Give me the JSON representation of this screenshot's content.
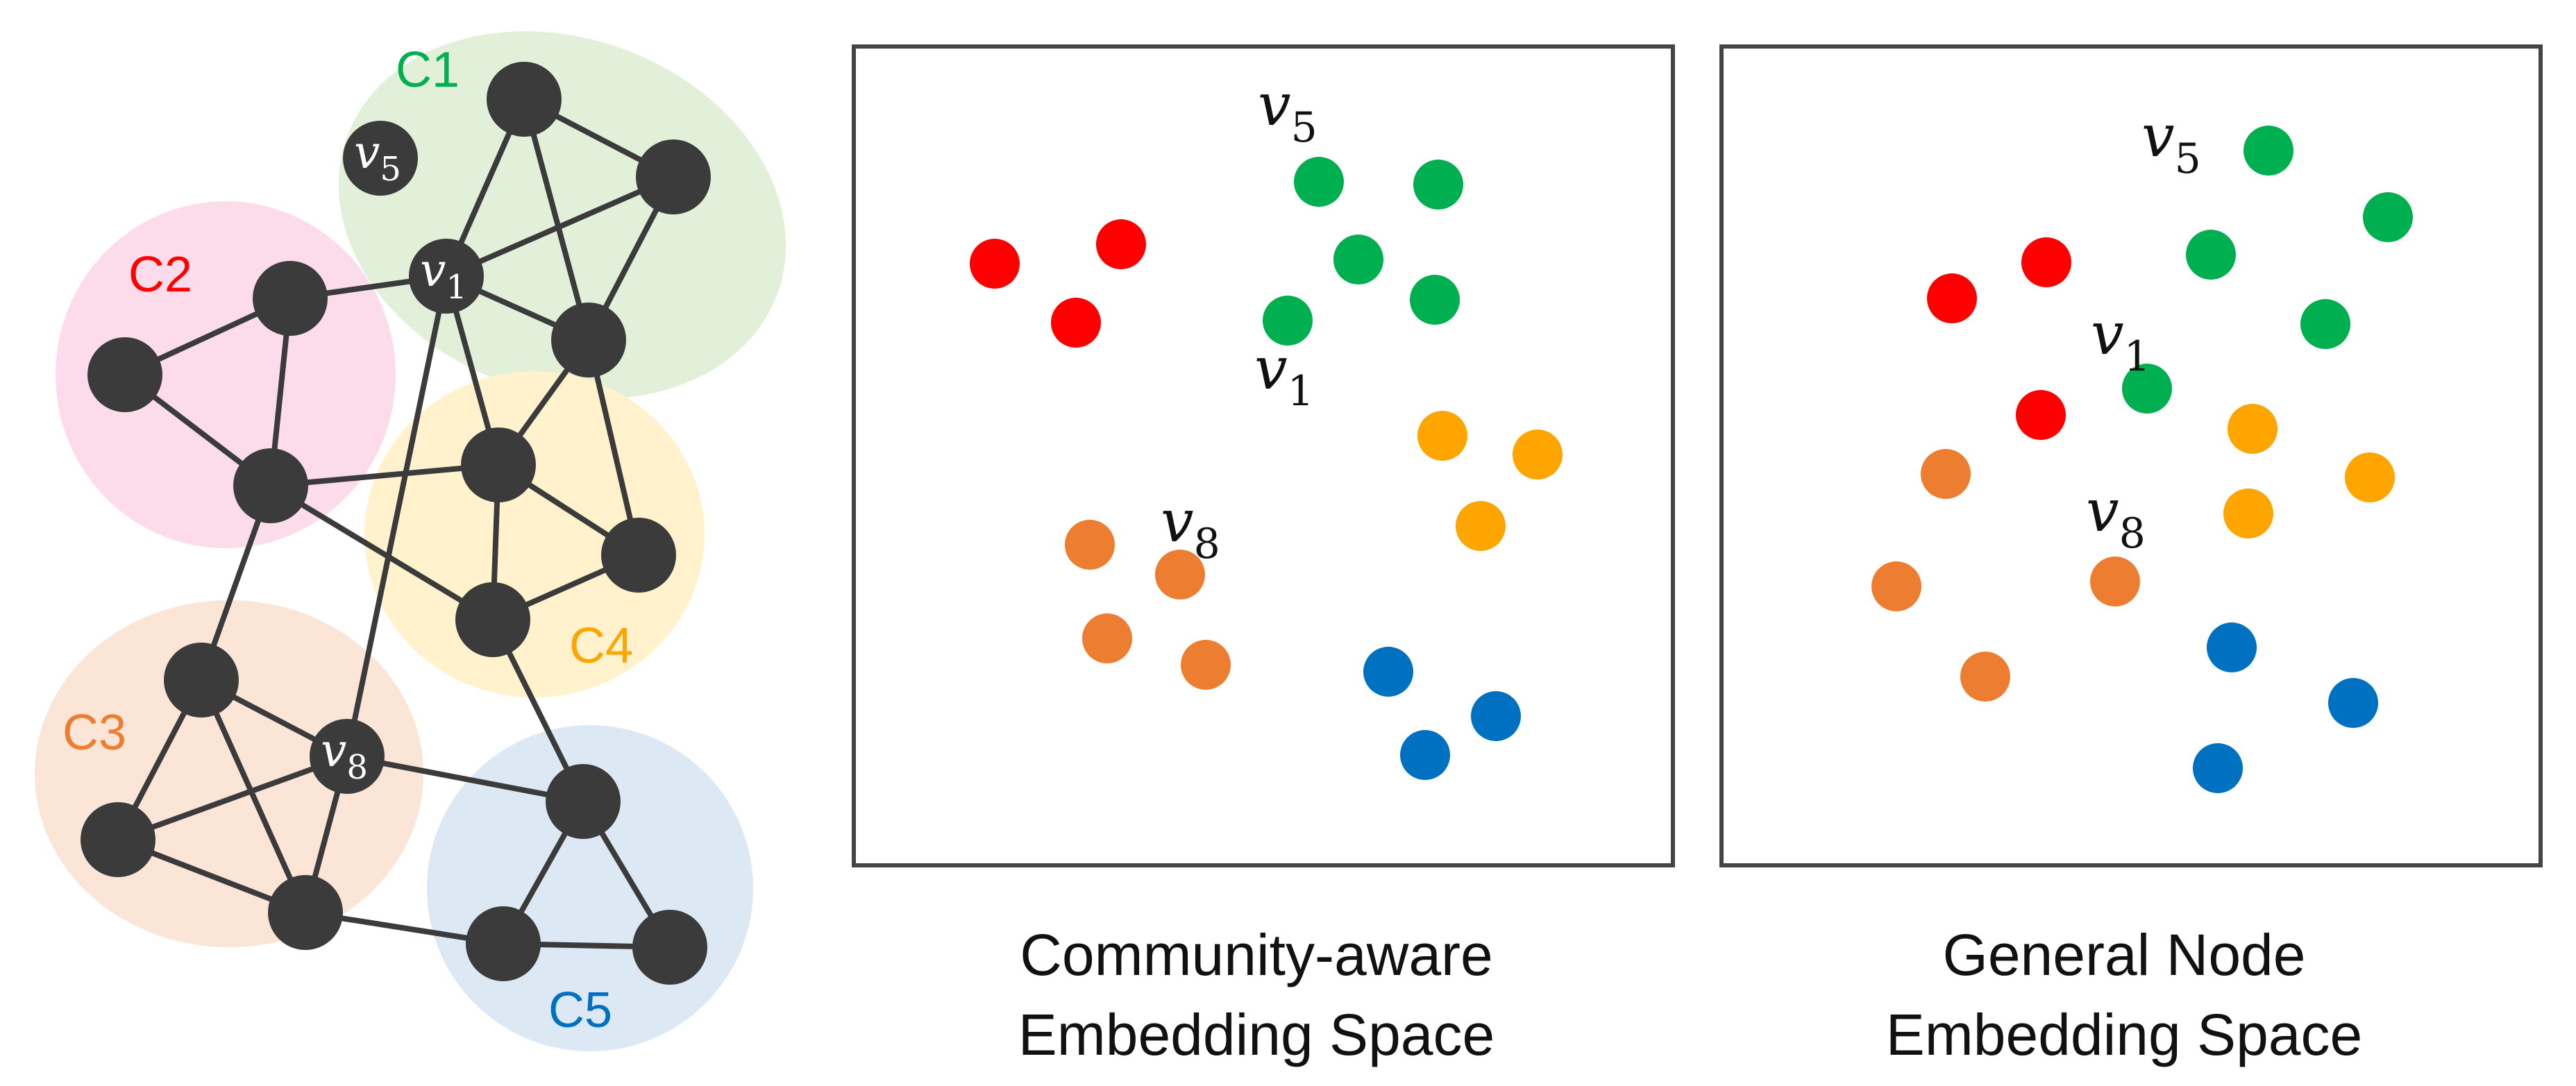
{
  "colors": {
    "node": "#3b3b3b",
    "edge": "#3b3b3b",
    "panel_border": "#444444",
    "text": "#111111"
  },
  "communities": [
    {
      "id": "C1",
      "label": "C1",
      "color": "#00b050",
      "fill": "#e2efd9"
    },
    {
      "id": "C2",
      "label": "C2",
      "color": "#ff0000",
      "fill": "#fcdcea"
    },
    {
      "id": "C3",
      "label": "C3",
      "color": "#ed7d31",
      "fill": "#fbe5d6"
    },
    {
      "id": "C4",
      "label": "C4",
      "color": "#ffa500",
      "fill": "#fff2cc"
    },
    {
      "id": "C5",
      "label": "C5",
      "color": "#0070c0",
      "fill": "#dde8f5"
    }
  ],
  "graph": {
    "labeled_nodes": [
      {
        "id": "v5",
        "label": "v",
        "sub": "5"
      },
      {
        "id": "v1",
        "label": "v",
        "sub": "1"
      },
      {
        "id": "v8",
        "label": "v",
        "sub": "8"
      }
    ]
  },
  "panels": [
    {
      "id": "community-aware",
      "caption_line1": "Community-aware",
      "caption_line2": "Embedding Space",
      "point_labels": [
        {
          "id": "v5",
          "label": "v",
          "sub": "5"
        },
        {
          "id": "v1",
          "label": "v",
          "sub": "1"
        },
        {
          "id": "v8",
          "label": "v",
          "sub": "8"
        }
      ]
    },
    {
      "id": "general",
      "caption_line1": "General Node",
      "caption_line2": "Embedding Space",
      "point_labels": [
        {
          "id": "v5",
          "label": "v",
          "sub": "5"
        },
        {
          "id": "v1",
          "label": "v",
          "sub": "1"
        },
        {
          "id": "v8",
          "label": "v",
          "sub": "8"
        }
      ]
    }
  ]
}
